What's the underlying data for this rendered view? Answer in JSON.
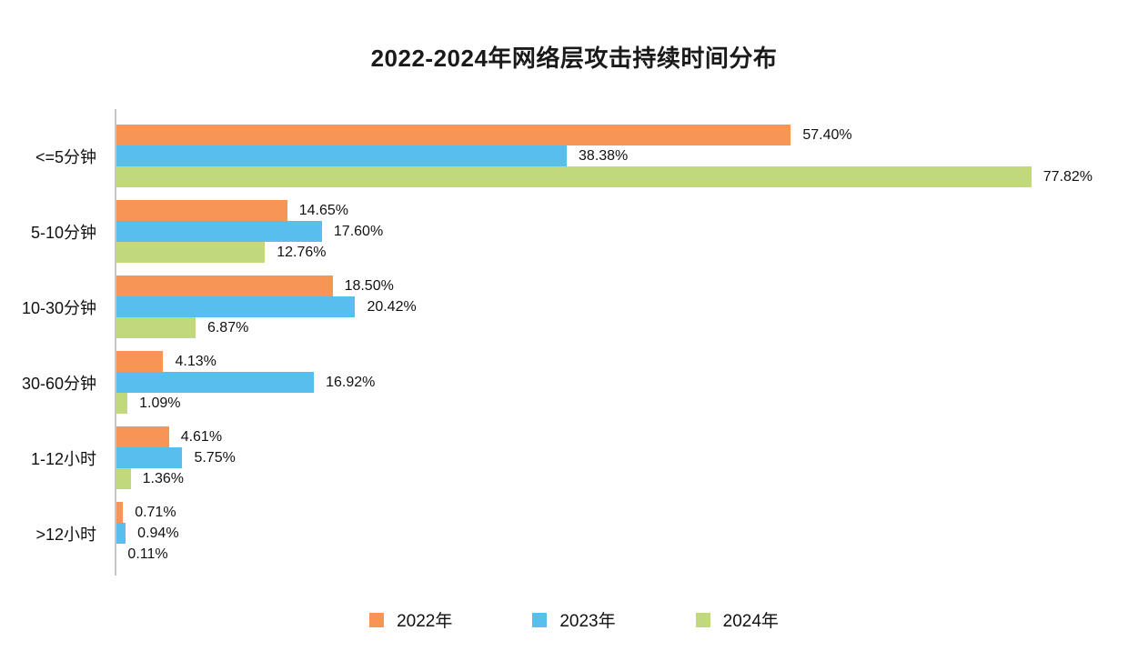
{
  "title": "2022-2024年网络层攻击持续时间分布",
  "chart_data": {
    "type": "bar",
    "orientation": "horizontal",
    "title": "2022-2024年网络层攻击持续时间分布",
    "categories": [
      "<=5分钟",
      "5-10分钟",
      "10-30分钟",
      "30-60分钟",
      "1-12小时",
      ">12小时"
    ],
    "series": [
      {
        "name": "2022年",
        "color": "#F79556",
        "values": [
          57.4,
          14.65,
          18.5,
          4.13,
          4.61,
          0.71
        ]
      },
      {
        "name": "2023年",
        "color": "#58BEEC",
        "values": [
          38.38,
          17.6,
          20.42,
          16.92,
          5.75,
          0.94
        ]
      },
      {
        "name": "2024年",
        "color": "#C2D87C",
        "values": [
          77.82,
          12.76,
          6.87,
          1.09,
          1.36,
          0.11
        ]
      }
    ],
    "value_label_format": "percent_two_decimals",
    "xlim": [
      0,
      87
    ],
    "grid": false,
    "legend_position": "bottom",
    "axis_line_color": "#C6C6C6",
    "text_color": "#111111"
  }
}
